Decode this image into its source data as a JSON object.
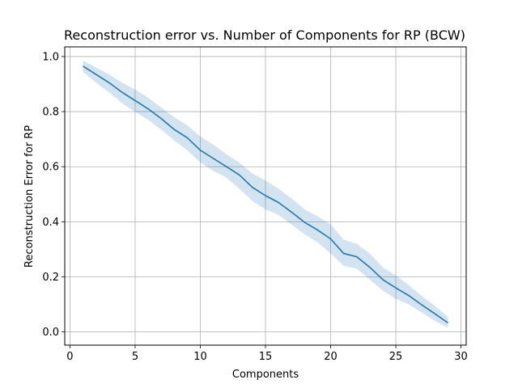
{
  "chart_data": {
    "type": "line",
    "title": "Reconstruction error vs. Number of Components for RP (BCW)",
    "xlabel": "Components",
    "ylabel": "Reconstruction Error for RP",
    "xlim": [
      -0.4,
      30.4
    ],
    "ylim": [
      -0.048,
      1.035
    ],
    "grid": true,
    "x_ticks": [
      0,
      5,
      10,
      15,
      20,
      25,
      30
    ],
    "x_tick_labels": [
      "0",
      "5",
      "10",
      "15",
      "20",
      "25",
      "30"
    ],
    "y_ticks": [
      0.0,
      0.2,
      0.4,
      0.6,
      0.8,
      1.0
    ],
    "y_tick_labels": [
      "0.0",
      "0.2",
      "0.4",
      "0.6",
      "0.8",
      "1.0"
    ],
    "line_color": "#1f77b4",
    "band_color": "#1f77b4",
    "series": [
      {
        "x": [
          1,
          2,
          3,
          4,
          5,
          6,
          7,
          8,
          9,
          10,
          11,
          12,
          13,
          14,
          15,
          16,
          17,
          18,
          19,
          20,
          21,
          22,
          23,
          24,
          25,
          26,
          27,
          28,
          29
        ],
        "values": [
          0.965,
          0.935,
          0.905,
          0.87,
          0.84,
          0.81,
          0.775,
          0.735,
          0.705,
          0.66,
          0.63,
          0.6,
          0.57,
          0.525,
          0.495,
          0.47,
          0.435,
          0.398,
          0.37,
          0.338,
          0.285,
          0.273,
          0.235,
          0.19,
          0.16,
          0.132,
          0.098,
          0.066,
          0.033
        ],
        "lower": [
          0.945,
          0.905,
          0.87,
          0.83,
          0.8,
          0.77,
          0.735,
          0.695,
          0.66,
          0.615,
          0.585,
          0.56,
          0.52,
          0.475,
          0.445,
          0.425,
          0.39,
          0.355,
          0.325,
          0.285,
          0.24,
          0.23,
          0.19,
          0.15,
          0.12,
          0.1,
          0.07,
          0.04,
          0.015
        ],
        "upper": [
          0.985,
          0.96,
          0.935,
          0.905,
          0.88,
          0.85,
          0.815,
          0.78,
          0.75,
          0.71,
          0.68,
          0.645,
          0.615,
          0.575,
          0.55,
          0.52,
          0.485,
          0.445,
          0.42,
          0.39,
          0.335,
          0.32,
          0.285,
          0.235,
          0.205,
          0.17,
          0.13,
          0.095,
          0.055
        ]
      }
    ]
  }
}
